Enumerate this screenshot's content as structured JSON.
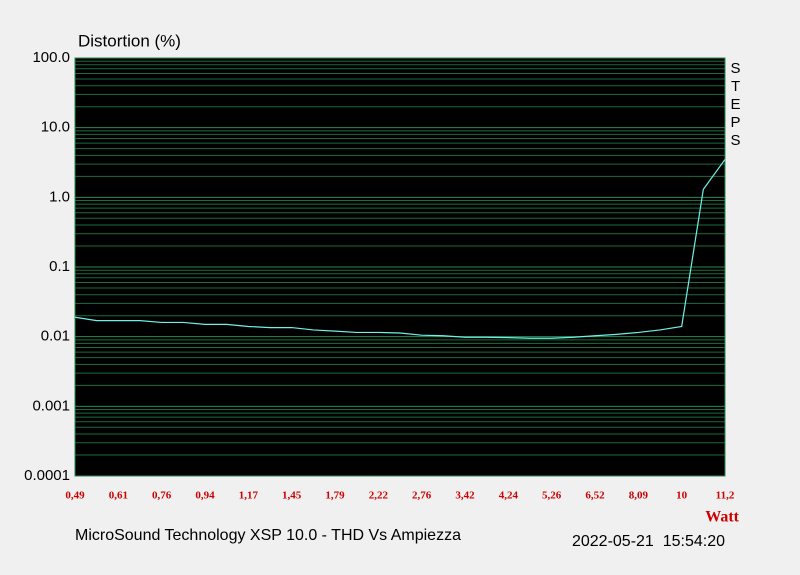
{
  "chart_data": {
    "type": "line",
    "ylabel": "Distortion (%)",
    "side_label": "STEPS",
    "xlabel": "Watt",
    "footer": "MicroSound Technology XSP 10.0 - THD Vs Ampiezza",
    "timestamp": "2022-05-21  15:54:20",
    "categories": [
      "0,49",
      null,
      "0,61",
      null,
      "0,76",
      null,
      "0,94",
      null,
      "1,17",
      null,
      "1,45",
      null,
      "1,79",
      null,
      "2,22",
      null,
      "2,76",
      null,
      "3,42",
      null,
      "4,24",
      null,
      "5,26",
      null,
      "6,52",
      null,
      "8,09",
      null,
      "10",
      null,
      "11,2"
    ],
    "values": [
      0.019,
      0.017,
      0.017,
      0.017,
      0.016,
      0.016,
      0.015,
      0.015,
      0.014,
      0.0135,
      0.0135,
      0.0125,
      0.012,
      0.0115,
      0.0115,
      0.0113,
      0.0105,
      0.0103,
      0.0098,
      0.0098,
      0.0097,
      0.0095,
      0.0095,
      0.0098,
      0.0103,
      0.0108,
      0.0115,
      0.0125,
      0.014,
      1.3,
      3.5
    ],
    "color": "#6ff0e8",
    "ylog": true,
    "ylim": [
      0.0001,
      100
    ],
    "yticks": [
      {
        "value": 100,
        "label": "100.0"
      },
      {
        "value": 10,
        "label": "10.0"
      },
      {
        "value": 1,
        "label": "1.0"
      },
      0.1,
      0.01,
      0.001,
      0.0001
    ],
    "grid": true
  }
}
